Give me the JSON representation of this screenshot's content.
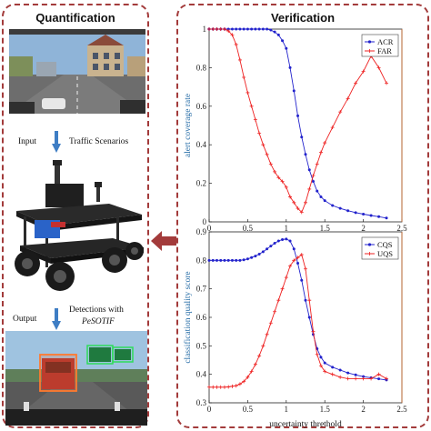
{
  "quantification": {
    "title": "Quantification",
    "input_label": "Input",
    "scenario_label": "Traffic Scenarios",
    "output_label": "Output",
    "detections_label": "Detections with",
    "method_label": "PeSOTIF"
  },
  "verification": {
    "title": "Verification"
  },
  "colors": {
    "panel_border": "#a33b3b",
    "arrow_blue": "#3e7dc4",
    "series_blue": "#2222cc",
    "series_red": "#ee2222",
    "axis_label_blue": "#2a6fa8",
    "right_axis_orange": "#d06a2a"
  },
  "chart_data": [
    {
      "type": "line",
      "xlabel": "uncertainty threthold",
      "ylabel": "alert coverage rate",
      "xlim": [
        0,
        2.5
      ],
      "ylim": [
        0,
        1
      ],
      "x_ticks": [
        "0",
        "0.5",
        "1",
        "1.5",
        "2",
        "2.5"
      ],
      "y_ticks": [
        "0",
        "0.2",
        "0.4",
        "0.6",
        "0.8",
        "1"
      ],
      "legend_position": "top-right",
      "series": [
        {
          "name": "ACR",
          "color": "#2222cc",
          "marker": "circle",
          "x": [
            0,
            0.05,
            0.1,
            0.15,
            0.2,
            0.25,
            0.3,
            0.35,
            0.4,
            0.45,
            0.5,
            0.55,
            0.6,
            0.65,
            0.7,
            0.75,
            0.8,
            0.85,
            0.9,
            0.95,
            1.0,
            1.05,
            1.1,
            1.15,
            1.2,
            1.25,
            1.3,
            1.35,
            1.4,
            1.45,
            1.5,
            1.6,
            1.7,
            1.8,
            1.9,
            2.0,
            2.1,
            2.2,
            2.3
          ],
          "y": [
            1.0,
            1.0,
            1.0,
            1.0,
            1.0,
            1.0,
            1.0,
            1.0,
            1.0,
            1.0,
            1.0,
            1.0,
            1.0,
            1.0,
            1.0,
            1.0,
            0.995,
            0.985,
            0.97,
            0.94,
            0.9,
            0.8,
            0.68,
            0.55,
            0.44,
            0.35,
            0.27,
            0.21,
            0.16,
            0.13,
            0.11,
            0.085,
            0.07,
            0.058,
            0.048,
            0.04,
            0.033,
            0.027,
            0.02
          ]
        },
        {
          "name": "FAR",
          "color": "#ee2222",
          "marker": "plus",
          "x": [
            0,
            0.05,
            0.1,
            0.15,
            0.2,
            0.25,
            0.3,
            0.35,
            0.4,
            0.45,
            0.5,
            0.55,
            0.6,
            0.65,
            0.7,
            0.75,
            0.8,
            0.85,
            0.9,
            0.95,
            1.0,
            1.05,
            1.1,
            1.15,
            1.2,
            1.25,
            1.3,
            1.35,
            1.4,
            1.45,
            1.5,
            1.6,
            1.7,
            1.8,
            1.9,
            2.0,
            2.1,
            2.2,
            2.3
          ],
          "y": [
            1.0,
            1.0,
            1.0,
            1.0,
            1.0,
            0.99,
            0.97,
            0.92,
            0.84,
            0.75,
            0.67,
            0.6,
            0.53,
            0.46,
            0.4,
            0.35,
            0.3,
            0.26,
            0.23,
            0.21,
            0.18,
            0.13,
            0.1,
            0.07,
            0.05,
            0.1,
            0.17,
            0.24,
            0.3,
            0.36,
            0.41,
            0.49,
            0.57,
            0.64,
            0.72,
            0.78,
            0.86,
            0.8,
            0.72
          ]
        }
      ]
    },
    {
      "type": "line",
      "xlabel": "uncertainty threthold",
      "ylabel": "classification quality score",
      "xlim": [
        0,
        2.5
      ],
      "ylim": [
        0.3,
        0.9
      ],
      "x_ticks": [
        "0",
        "0.5",
        "1",
        "1.5",
        "2",
        "2.5"
      ],
      "y_ticks": [
        "0.3",
        "0.4",
        "0.5",
        "0.6",
        "0.7",
        "0.8",
        "0.9"
      ],
      "legend_position": "top-right",
      "series": [
        {
          "name": "CQS",
          "color": "#2222cc",
          "marker": "circle",
          "x": [
            0,
            0.05,
            0.1,
            0.15,
            0.2,
            0.25,
            0.3,
            0.35,
            0.4,
            0.45,
            0.5,
            0.55,
            0.6,
            0.65,
            0.7,
            0.75,
            0.8,
            0.85,
            0.9,
            0.95,
            1.0,
            1.05,
            1.1,
            1.15,
            1.2,
            1.25,
            1.3,
            1.35,
            1.4,
            1.45,
            1.5,
            1.6,
            1.7,
            1.8,
            1.9,
            2.0,
            2.1,
            2.2,
            2.3
          ],
          "y": [
            0.8,
            0.8,
            0.8,
            0.8,
            0.8,
            0.8,
            0.8,
            0.8,
            0.8,
            0.802,
            0.805,
            0.81,
            0.815,
            0.822,
            0.83,
            0.84,
            0.85,
            0.86,
            0.868,
            0.873,
            0.875,
            0.868,
            0.84,
            0.79,
            0.73,
            0.66,
            0.6,
            0.54,
            0.49,
            0.46,
            0.44,
            0.425,
            0.415,
            0.405,
            0.398,
            0.392,
            0.388,
            0.384,
            0.38
          ]
        },
        {
          "name": "UQS",
          "color": "#ee2222",
          "marker": "plus",
          "x": [
            0,
            0.05,
            0.1,
            0.15,
            0.2,
            0.25,
            0.3,
            0.35,
            0.4,
            0.45,
            0.5,
            0.55,
            0.6,
            0.65,
            0.7,
            0.75,
            0.8,
            0.85,
            0.9,
            0.95,
            1.0,
            1.05,
            1.1,
            1.15,
            1.2,
            1.25,
            1.3,
            1.35,
            1.4,
            1.45,
            1.5,
            1.6,
            1.7,
            1.8,
            1.9,
            2.0,
            2.1,
            2.2,
            2.3
          ],
          "y": [
            0.355,
            0.355,
            0.355,
            0.355,
            0.355,
            0.356,
            0.358,
            0.36,
            0.366,
            0.375,
            0.39,
            0.41,
            0.435,
            0.465,
            0.5,
            0.54,
            0.58,
            0.62,
            0.66,
            0.7,
            0.74,
            0.78,
            0.8,
            0.81,
            0.82,
            0.77,
            0.66,
            0.55,
            0.47,
            0.43,
            0.41,
            0.4,
            0.39,
            0.385,
            0.385,
            0.385,
            0.385,
            0.4,
            0.385
          ]
        }
      ]
    }
  ]
}
